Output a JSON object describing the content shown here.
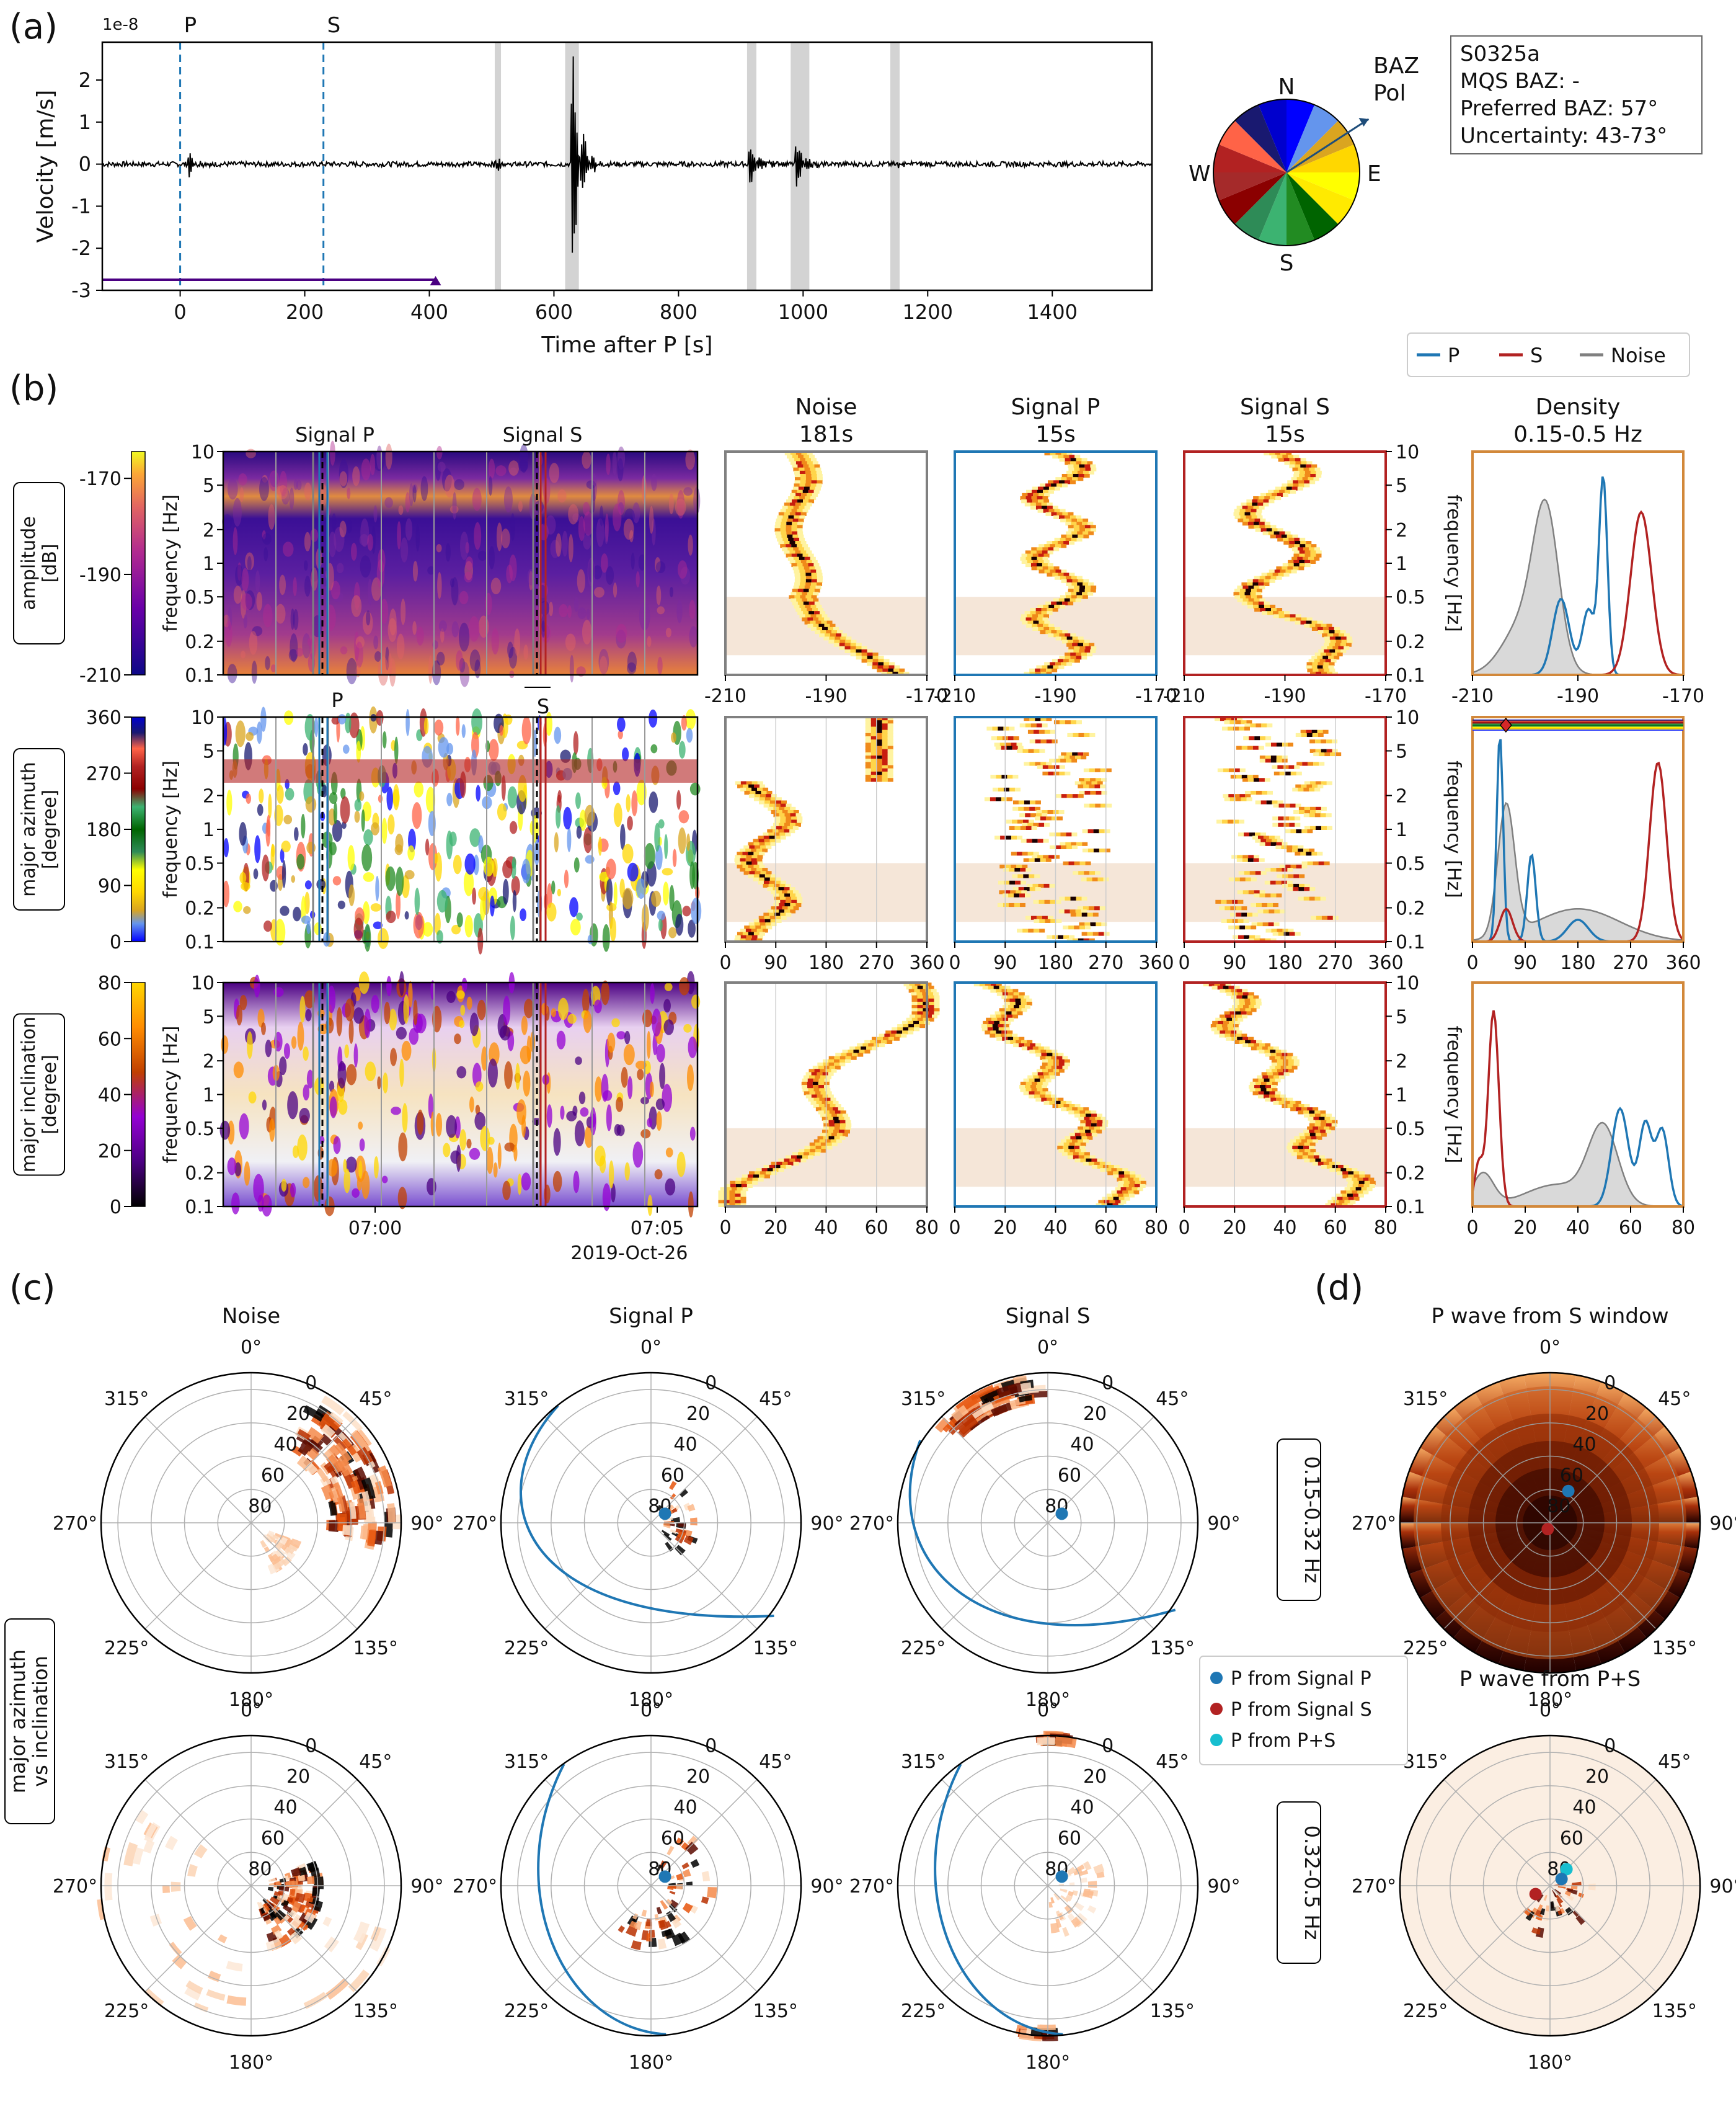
{
  "panel_labels": [
    "(a)",
    "(b)",
    "(c)",
    "(d)"
  ],
  "info_box": [
    "S0325a",
    "MQS BAZ: -",
    "Preferred BAZ: 57°",
    "Uncertainty: 43-73°"
  ],
  "compass": {
    "labels": [
      "N",
      "E",
      "S",
      "W"
    ],
    "arrow_labels": [
      "BAZ",
      "Pol"
    ],
    "baz_deg": 57
  },
  "legend_b": [
    {
      "label": "P",
      "color": "#1f77b4"
    },
    {
      "label": "S",
      "color": "#b22222"
    },
    {
      "label": "Noise",
      "color": "#808080"
    }
  ],
  "legend_c": [
    {
      "label": "P from Signal P",
      "color": "#1f77b4"
    },
    {
      "label": "P from Signal S",
      "color": "#b22222"
    },
    {
      "label": "P from P+S",
      "color": "#17becf"
    }
  ],
  "chart_data": [
    {
      "id": "a",
      "type": "line",
      "xlabel": "Time after P [s]",
      "ylabel": "Velocity [m/s]",
      "scale_label": "1e-8",
      "xlim": [
        -125,
        1560
      ],
      "ylim": [
        -3,
        2.9
      ],
      "xticks": [
        0,
        200,
        400,
        600,
        800,
        1000,
        1200,
        1400
      ],
      "yticks": [
        -3,
        -2,
        -1,
        0,
        1,
        2
      ],
      "markers": [
        {
          "label": "P",
          "x": 0
        },
        {
          "label": "S",
          "x": 230
        }
      ],
      "window": [
        -125,
        410
      ],
      "gray_bands": [
        [
          505,
          515
        ],
        [
          618,
          640
        ],
        [
          910,
          925
        ],
        [
          980,
          1010
        ],
        [
          1140,
          1155
        ]
      ],
      "spikes": [
        {
          "t": 15,
          "amp": 0.25,
          "w": 10
        },
        {
          "t": 505,
          "amp": 0.2,
          "w": 8
        },
        {
          "t": 630,
          "amp": 2.4,
          "w": 12
        },
        {
          "t": 915,
          "amp": 0.45,
          "w": 12
        },
        {
          "t": 990,
          "amp": 0.55,
          "w": 12
        },
        {
          "t": 1150,
          "amp": 0.15,
          "w": 8
        }
      ]
    },
    {
      "id": "b-spectrograms",
      "type": "heatmap",
      "rows": [
        {
          "name": "amplitude",
          "unit": "[dB]",
          "colorbar_ticks": [
            "-170",
            "-190",
            "-210"
          ]
        },
        {
          "name": "major azimuth",
          "unit": "[degree]",
          "colorbar_ticks": [
            "360",
            "270",
            "180",
            "90",
            "0"
          ]
        },
        {
          "name": "major inclination",
          "unit": "[degree]",
          "colorbar_ticks": [
            "80",
            "60",
            "40",
            "20",
            "0"
          ]
        }
      ],
      "ylabel": "frequency [Hz]",
      "yticks": [
        "10",
        "5",
        "2",
        "1",
        "0.5",
        "0.2",
        "0.1"
      ],
      "xticks": [
        "07:00",
        "07:05"
      ],
      "date": "2019-Oct-26",
      "window_labels": {
        "signal_p": "Signal P",
        "signal_s": "Signal S",
        "p": "P",
        "s": "S"
      }
    },
    {
      "id": "b-histograms",
      "type": "heatmap",
      "columns": [
        {
          "title": "Noise",
          "sub": "181s",
          "color": "#808080"
        },
        {
          "title": "Signal P",
          "sub": "15s",
          "color": "#1f77b4"
        },
        {
          "title": "Signal S",
          "sub": "15s",
          "color": "#b22222"
        }
      ],
      "xticks": [
        [
          "-210",
          "-190",
          "-170"
        ],
        [
          "0",
          "90",
          "180",
          "270",
          "360"
        ],
        [
          "0",
          "20",
          "40",
          "60",
          "80"
        ]
      ],
      "yticks": [
        "10",
        "5",
        "2",
        "1",
        "0.5",
        "0.2",
        "0.1"
      ],
      "ylabel": "frequency [Hz]",
      "band_hz": [
        0.15,
        0.5
      ]
    },
    {
      "id": "b-density",
      "type": "line",
      "title": "Density",
      "subtitle": "0.15-0.5 Hz",
      "xticks": [
        [
          "-210",
          "-190",
          "-170"
        ],
        [
          "0",
          "90",
          "180",
          "270",
          "360"
        ],
        [
          "0",
          "20",
          "40",
          "60",
          "80"
        ]
      ],
      "baz_marker_deg": 57
    },
    {
      "id": "c",
      "type": "scatter",
      "side_label": [
        "major azimuth",
        "vs inclination"
      ],
      "columns": [
        "Noise",
        "Signal P",
        "Signal S"
      ],
      "rows": [
        "0.15-0.32 Hz",
        "0.32-0.5 Hz"
      ],
      "angle_labels": [
        "0°",
        "45°",
        "90°",
        "135°",
        "180°",
        "225°",
        "270°",
        "315°"
      ],
      "radial_labels": [
        "0",
        "20",
        "40",
        "60",
        "80"
      ],
      "p_estimate": {
        "azimuth": 57,
        "inclination": 80
      }
    },
    {
      "id": "d",
      "type": "heatmap",
      "titles": [
        "P wave from S window",
        "P wave from P+S"
      ],
      "angle_labels": [
        "0°",
        "45°",
        "90°",
        "135°",
        "180°",
        "225°",
        "270°",
        "315°"
      ],
      "radial_labels": [
        "0",
        "20",
        "40",
        "60",
        "80"
      ]
    }
  ]
}
